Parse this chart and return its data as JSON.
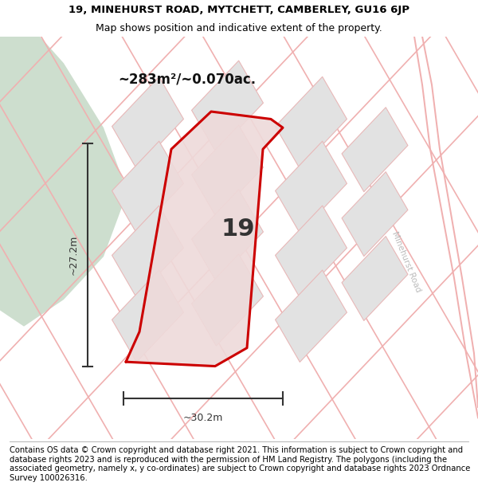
{
  "title_line1": "19, MINEHURST ROAD, MYTCHETT, CAMBERLEY, GU16 6JP",
  "title_line2": "Map shows position and indicative extent of the property.",
  "footer_text": "Contains OS data © Crown copyright and database right 2021. This information is subject to Crown copyright and database rights 2023 and is reproduced with the permission of HM Land Registry. The polygons (including the associated geometry, namely x, y co-ordinates) are subject to Crown copyright and database rights 2023 Ordnance Survey 100026316.",
  "area_label": "~283m²/~0.070ac.",
  "width_label": "~30.2m",
  "height_label": "~27.2m",
  "plot_number": "19",
  "background_color": "#ffffff",
  "map_bg_color": "#f2f2f2",
  "green_area_color": "#cddece",
  "plot_fill_color": "#e2e2e2",
  "plot_edge_color": "#e8b8b8",
  "road_color": "#f0b0b0",
  "highlight_color": "#cc0000",
  "highlight_fill": "#eedada",
  "dim_color": "#333333",
  "road_label_color": "#bbbbbb",
  "title_fontsize": 9.5,
  "subtitle_fontsize": 9,
  "footer_fontsize": 7.2,
  "area_fontsize": 12,
  "dim_fontsize": 9,
  "plot_label_fontsize": 22
}
